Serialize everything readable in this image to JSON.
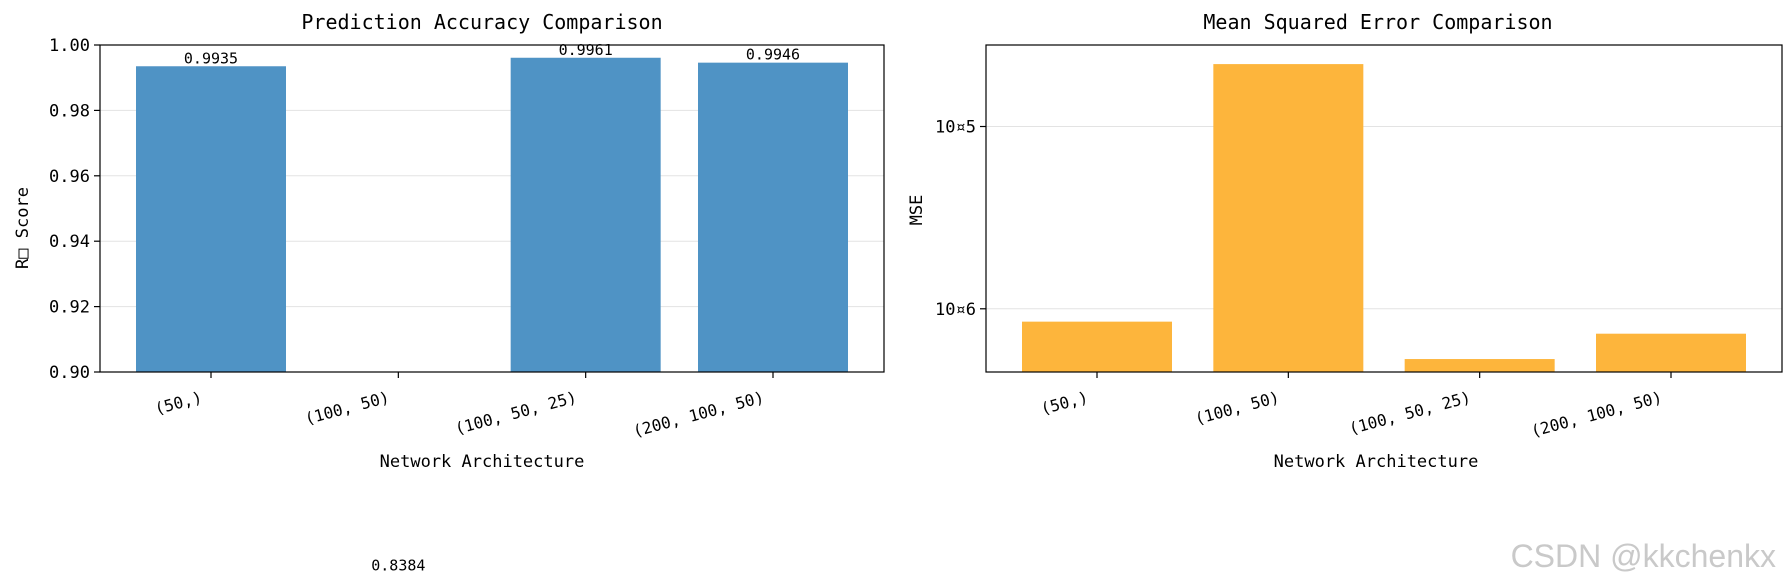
{
  "chart_data": [
    {
      "type": "bar",
      "title": "Prediction Accuracy Comparison",
      "xlabel": "Network Architecture",
      "ylabel": "R□ Score",
      "categories": [
        "(50,)",
        "(100, 50)",
        "(100, 50, 25)",
        "(200, 100, 50)"
      ],
      "values": [
        0.9935,
        0.8384,
        0.9961,
        0.9946
      ],
      "value_labels": [
        "0.9935",
        "0.8384",
        "0.9961",
        "0.9946"
      ],
      "ylim": [
        0.9,
        1.0
      ],
      "yticks": [
        0.9,
        0.92,
        0.94,
        0.96,
        0.98,
        1.0
      ],
      "ytick_labels": [
        "0.90",
        "0.92",
        "0.94",
        "0.96",
        "0.98",
        "1.00"
      ],
      "grid": "y",
      "color": "#4f93c5"
    },
    {
      "type": "bar",
      "title": "Mean Squared Error Comparison",
      "xlabel": "Network Architecture",
      "ylabel": "MSE",
      "categories": [
        "(50,)",
        "(100, 50)",
        "(100, 50, 25)",
        "(200, 100, 50)"
      ],
      "values": [
        8.5e-07,
        2.2e-05,
        5.3e-07,
        7.3e-07
      ],
      "yscale": "log",
      "ylim": [
        4.5e-07,
        2.8e-05
      ],
      "yticks": [
        1e-06,
        1e-05
      ],
      "ytick_labels": [
        "10¤6",
        "10¤5"
      ],
      "grid": "y",
      "color": "#fdb53c"
    }
  ],
  "watermark": "CSDN @kkchenkx"
}
